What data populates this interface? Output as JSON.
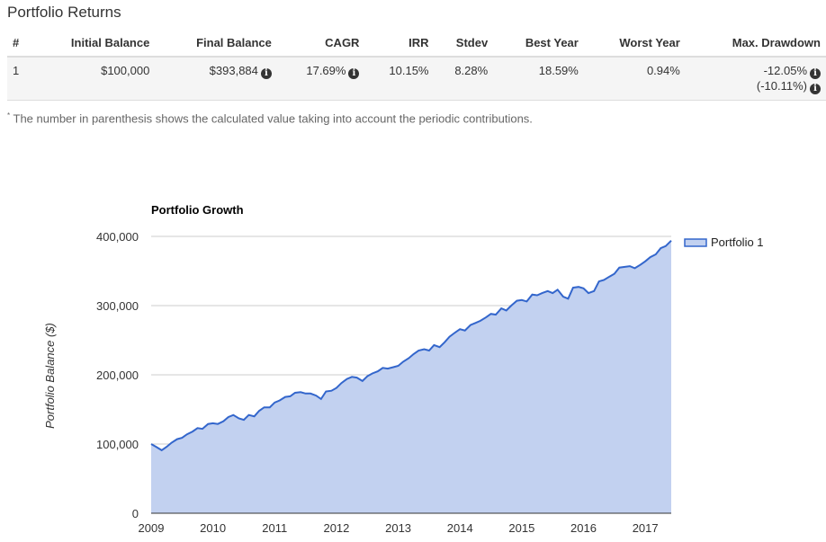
{
  "section": {
    "title": "Portfolio Returns"
  },
  "table": {
    "headers": [
      "#",
      "Initial Balance",
      "Final Balance",
      "CAGR",
      "IRR",
      "Stdev",
      "Best Year",
      "Worst Year",
      "Max. Drawdown"
    ],
    "row": {
      "index": "1",
      "initial_balance": "$100,000",
      "final_balance": "$393,884",
      "cagr": "17.69%",
      "irr": "10.15%",
      "stdev": "8.28%",
      "best_year": "18.59%",
      "worst_year": "0.94%",
      "max_drawdown": "-12.05%",
      "max_drawdown_alt": "(-10.11%)"
    }
  },
  "footnote": {
    "marker": "*",
    "text": "The number in parenthesis shows the calculated value taking into account the periodic contributions."
  },
  "icons": {
    "info": "info-circle-icon",
    "info_glyph": "i"
  },
  "chart_data": {
    "type": "area",
    "title": "Portfolio Growth",
    "xlabel": "",
    "ylabel": "Portfolio Balance ($)",
    "xlim": [
      2009.0,
      2017.42
    ],
    "ylim": [
      0,
      400000
    ],
    "y_ticks": [
      0,
      100000,
      200000,
      300000,
      400000
    ],
    "y_tick_labels": [
      "0",
      "100,000",
      "200,000",
      "300,000",
      "400,000"
    ],
    "x_ticks": [
      2009,
      2010,
      2011,
      2012,
      2013,
      2014,
      2015,
      2016,
      2017
    ],
    "x_tick_labels": [
      "2009",
      "2010",
      "2011",
      "2012",
      "2013",
      "2014",
      "2015",
      "2016",
      "2017"
    ],
    "grid": true,
    "legend_position": "right",
    "colors": {
      "line": "#3366cc",
      "fill": "#c2d1f0",
      "grid": "#cccccc"
    },
    "series": [
      {
        "name": "Portfolio 1",
        "x": [
          2009.0,
          2009.08,
          2009.17,
          2009.25,
          2009.33,
          2009.42,
          2009.5,
          2009.58,
          2009.67,
          2009.75,
          2009.83,
          2009.92,
          2010.0,
          2010.08,
          2010.17,
          2010.25,
          2010.33,
          2010.42,
          2010.5,
          2010.58,
          2010.67,
          2010.75,
          2010.83,
          2010.92,
          2011.0,
          2011.08,
          2011.17,
          2011.25,
          2011.33,
          2011.42,
          2011.5,
          2011.58,
          2011.67,
          2011.75,
          2011.83,
          2011.92,
          2012.0,
          2012.08,
          2012.17,
          2012.25,
          2012.33,
          2012.42,
          2012.5,
          2012.58,
          2012.67,
          2012.75,
          2012.83,
          2012.92,
          2013.0,
          2013.08,
          2013.17,
          2013.25,
          2013.33,
          2013.42,
          2013.5,
          2013.58,
          2013.67,
          2013.75,
          2013.83,
          2013.92,
          2014.0,
          2014.08,
          2014.17,
          2014.25,
          2014.33,
          2014.42,
          2014.5,
          2014.58,
          2014.67,
          2014.75,
          2014.83,
          2014.92,
          2015.0,
          2015.08,
          2015.17,
          2015.25,
          2015.33,
          2015.42,
          2015.5,
          2015.58,
          2015.67,
          2015.75,
          2015.83,
          2015.92,
          2016.0,
          2016.08,
          2016.17,
          2016.25,
          2016.33,
          2016.42,
          2016.5,
          2016.58,
          2016.67,
          2016.75,
          2016.83,
          2016.92,
          2017.0,
          2017.08,
          2017.17,
          2017.25,
          2017.33,
          2017.42
        ],
        "values": [
          100000,
          96000,
          91000,
          96000,
          102000,
          107000,
          109000,
          114000,
          118000,
          123000,
          122000,
          129000,
          130000,
          129000,
          133000,
          139000,
          142000,
          137000,
          135000,
          142000,
          140000,
          148000,
          153000,
          153000,
          160000,
          163000,
          168000,
          169000,
          174000,
          175000,
          173000,
          173000,
          170000,
          165000,
          176000,
          177000,
          181000,
          188000,
          194000,
          197000,
          196000,
          191000,
          198000,
          202000,
          205000,
          210000,
          209000,
          211000,
          213000,
          219000,
          224000,
          230000,
          235000,
          237000,
          235000,
          243000,
          240000,
          247000,
          255000,
          261000,
          266000,
          264000,
          272000,
          275000,
          278000,
          283000,
          288000,
          287000,
          296000,
          293000,
          300000,
          307000,
          308000,
          306000,
          316000,
          315000,
          318000,
          321000,
          318000,
          323000,
          313000,
          310000,
          326000,
          327000,
          325000,
          318000,
          321000,
          335000,
          337000,
          342000,
          346000,
          355000,
          356000,
          357000,
          354000,
          359000,
          364000,
          370000,
          374000,
          383000,
          386000,
          393884
        ]
      }
    ]
  }
}
